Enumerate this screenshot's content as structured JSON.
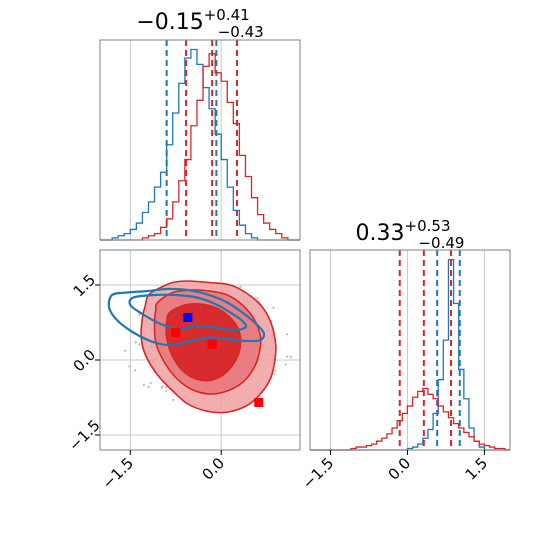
{
  "colors": {
    "blue": "#1f77b4",
    "red": "#d62728",
    "blue_marker": "#0000ff",
    "red_marker": "#ff0000",
    "grid": "#c8c8c8",
    "frame": "#808080",
    "scatter": "#c0c0c0",
    "fill_inner": "#d62728",
    "fill_outer": "#f0a0a0"
  },
  "chart_data": [
    {
      "type": "histogram",
      "panel": "top-left",
      "title": {
        "value": "−0.15",
        "plus": "+0.41",
        "minus": "−0.43"
      },
      "xlim": [
        -2.0,
        1.3
      ],
      "grid": true,
      "x_grid": [
        -1.5,
        0.0
      ],
      "quantile_lines": {
        "red": [
          -0.58,
          -0.15,
          0.26
        ],
        "blue": [
          -0.9,
          -0.08
        ]
      },
      "series": [
        {
          "color": "blue",
          "x": [
            -2.0,
            -1.9,
            -1.8,
            -1.7,
            -1.6,
            -1.5,
            -1.4,
            -1.3,
            -1.2,
            -1.1,
            -1.0,
            -0.9,
            -0.8,
            -0.7,
            -0.6,
            -0.5,
            -0.4,
            -0.3,
            -0.2,
            -0.1,
            0.0,
            0.1,
            0.2,
            0.3,
            0.4,
            0.5,
            0.6,
            0.7,
            0.8,
            0.9,
            1.0,
            1.1,
            1.2
          ],
          "values": [
            0,
            0,
            1,
            2,
            3,
            5,
            8,
            13,
            18,
            25,
            32,
            45,
            60,
            74,
            86,
            90,
            83,
            72,
            62,
            50,
            38,
            25,
            14,
            7,
            3,
            1,
            0,
            0,
            0,
            0,
            0,
            0,
            0
          ]
        },
        {
          "color": "red",
          "x": [
            -2.0,
            -1.9,
            -1.8,
            -1.7,
            -1.6,
            -1.5,
            -1.4,
            -1.3,
            -1.2,
            -1.1,
            -1.0,
            -0.9,
            -0.8,
            -0.7,
            -0.6,
            -0.5,
            -0.4,
            -0.3,
            -0.2,
            -0.1,
            0.0,
            0.1,
            0.2,
            0.3,
            0.4,
            0.5,
            0.6,
            0.7,
            0.8,
            0.9,
            1.0,
            1.1,
            1.2
          ],
          "values": [
            0,
            0,
            0,
            0,
            0,
            0,
            0,
            1,
            2,
            3,
            6,
            10,
            18,
            28,
            38,
            54,
            66,
            82,
            88,
            79,
            75,
            65,
            55,
            40,
            30,
            20,
            12,
            8,
            5,
            3,
            1,
            0,
            0
          ]
        }
      ]
    },
    {
      "type": "histogram",
      "panel": "bottom-right",
      "title": {
        "value": "0.33",
        "plus": "+0.53",
        "minus": "−0.49"
      },
      "xlim": [
        -1.9,
        2.0
      ],
      "xticks": [
        "−1.5",
        "0.0",
        "1.5"
      ],
      "x_grid": [
        -1.5,
        0.0,
        1.5
      ],
      "grid": true,
      "quantile_lines": {
        "red": [
          -0.15,
          0.32,
          0.85
        ],
        "blue": [
          0.58,
          1.02
        ]
      },
      "series": [
        {
          "color": "blue",
          "x": [
            -1.9,
            -1.8,
            -1.7,
            -1.6,
            -1.5,
            -1.4,
            -1.3,
            -1.2,
            -1.1,
            -1.0,
            -0.9,
            -0.8,
            -0.7,
            -0.6,
            -0.5,
            -0.4,
            -0.3,
            -0.2,
            -0.1,
            0.0,
            0.1,
            0.2,
            0.3,
            0.4,
            0.5,
            0.6,
            0.7,
            0.8,
            0.9,
            1.0,
            1.1,
            1.2,
            1.3,
            1.4,
            1.5,
            1.6,
            1.7,
            1.8,
            1.9
          ],
          "values": [
            0,
            0,
            0,
            0,
            0,
            0,
            0,
            0,
            0,
            0,
            0,
            0,
            0,
            0,
            0,
            0,
            0,
            0,
            0,
            1,
            2,
            4,
            8,
            14,
            25,
            48,
            75,
            130,
            100,
            55,
            35,
            15,
            6,
            2,
            0,
            0,
            0,
            0,
            0
          ]
        },
        {
          "color": "red",
          "x": [
            -1.9,
            -1.8,
            -1.7,
            -1.6,
            -1.5,
            -1.4,
            -1.3,
            -1.2,
            -1.1,
            -1.0,
            -0.9,
            -0.8,
            -0.7,
            -0.6,
            -0.5,
            -0.4,
            -0.3,
            -0.2,
            -0.1,
            0.0,
            0.1,
            0.2,
            0.3,
            0.4,
            0.5,
            0.6,
            0.7,
            0.8,
            0.9,
            1.0,
            1.1,
            1.2,
            1.3,
            1.4,
            1.5,
            1.6,
            1.7,
            1.8,
            1.9
          ],
          "values": [
            0,
            0,
            0,
            0,
            0,
            0,
            0,
            0,
            1,
            2,
            2,
            3,
            4,
            6,
            8,
            11,
            15,
            20,
            25,
            30,
            36,
            40,
            42,
            38,
            35,
            30,
            26,
            22,
            18,
            15,
            12,
            9,
            6,
            4,
            3,
            2,
            1,
            1,
            0
          ]
        }
      ]
    },
    {
      "type": "contour",
      "panel": "bottom-left",
      "xlim": [
        -2.0,
        1.3
      ],
      "ylim": [
        -1.8,
        2.2
      ],
      "xticks": [
        "−1.5",
        "0.0"
      ],
      "yticks": [
        "1.5",
        "0.0",
        "−1.5"
      ],
      "x_grid": [
        -1.5,
        0.0
      ],
      "y_grid": [
        1.5,
        0.0,
        -1.5
      ],
      "grid": true,
      "red_contours": [
        {
          "level": "outer",
          "points": [
            [
              -1.2,
              1.3
            ],
            [
              -1.0,
              1.45
            ],
            [
              -0.8,
              1.55
            ],
            [
              -0.55,
              1.58
            ],
            [
              -0.2,
              1.55
            ],
            [
              0.15,
              1.5
            ],
            [
              0.4,
              1.35
            ],
            [
              0.65,
              1.1
            ],
            [
              0.82,
              0.75
            ],
            [
              0.9,
              0.3
            ],
            [
              0.88,
              -0.05
            ],
            [
              0.82,
              -0.35
            ],
            [
              0.7,
              -0.6
            ],
            [
              0.5,
              -0.85
            ],
            [
              0.3,
              -0.98
            ],
            [
              0.05,
              -1.05
            ],
            [
              -0.25,
              -1.02
            ],
            [
              -0.55,
              -0.88
            ],
            [
              -0.8,
              -0.62
            ],
            [
              -1.05,
              -0.3
            ],
            [
              -1.25,
              0.1
            ],
            [
              -1.32,
              0.45
            ],
            [
              -1.3,
              0.85
            ],
            [
              -1.25,
              1.1
            ]
          ]
        },
        {
          "level": "middle",
          "points": [
            [
              -1.05,
              1.15
            ],
            [
              -0.8,
              1.35
            ],
            [
              -0.5,
              1.4
            ],
            [
              -0.2,
              1.38
            ],
            [
              0.1,
              1.3
            ],
            [
              0.35,
              1.1
            ],
            [
              0.55,
              0.8
            ],
            [
              0.65,
              0.45
            ],
            [
              0.62,
              0.1
            ],
            [
              0.52,
              -0.2
            ],
            [
              0.35,
              -0.45
            ],
            [
              0.1,
              -0.62
            ],
            [
              -0.2,
              -0.68
            ],
            [
              -0.5,
              -0.58
            ],
            [
              -0.75,
              -0.35
            ],
            [
              -0.95,
              -0.02
            ],
            [
              -1.08,
              0.35
            ],
            [
              -1.1,
              0.75
            ],
            [
              -1.08,
              1.0
            ]
          ]
        },
        {
          "level": "inner",
          "points": [
            [
              -0.85,
              0.95
            ],
            [
              -0.6,
              1.1
            ],
            [
              -0.35,
              1.12
            ],
            [
              -0.1,
              1.05
            ],
            [
              0.12,
              0.88
            ],
            [
              0.28,
              0.62
            ],
            [
              0.32,
              0.32
            ],
            [
              0.25,
              0.02
            ],
            [
              0.08,
              -0.25
            ],
            [
              -0.15,
              -0.4
            ],
            [
              -0.42,
              -0.38
            ],
            [
              -0.65,
              -0.2
            ],
            [
              -0.82,
              0.12
            ],
            [
              -0.9,
              0.45
            ],
            [
              -0.9,
              0.75
            ]
          ]
        }
      ],
      "blue_contours": [
        {
          "level": "outer",
          "points": [
            [
              -1.8,
              1.3
            ],
            [
              -1.55,
              1.35
            ],
            [
              -1.2,
              1.38
            ],
            [
              -0.9,
              1.42
            ],
            [
              -0.55,
              1.4
            ],
            [
              -0.2,
              1.3
            ],
            [
              0.1,
              1.15
            ],
            [
              0.35,
              0.95
            ],
            [
              0.55,
              0.75
            ],
            [
              0.7,
              0.55
            ],
            [
              0.65,
              0.4
            ],
            [
              0.4,
              0.38
            ],
            [
              0.1,
              0.42
            ],
            [
              -0.2,
              0.45
            ],
            [
              -0.5,
              0.38
            ],
            [
              -0.8,
              0.3
            ],
            [
              -1.1,
              0.35
            ],
            [
              -1.45,
              0.55
            ],
            [
              -1.72,
              0.8
            ],
            [
              -1.85,
              1.05
            ]
          ]
        },
        {
          "level": "inner",
          "points": [
            [
              -1.45,
              1.25
            ],
            [
              -1.1,
              1.3
            ],
            [
              -0.75,
              1.3
            ],
            [
              -0.4,
              1.25
            ],
            [
              -0.1,
              1.12
            ],
            [
              0.15,
              0.95
            ],
            [
              0.35,
              0.78
            ],
            [
              0.4,
              0.65
            ],
            [
              0.2,
              0.6
            ],
            [
              -0.1,
              0.65
            ],
            [
              -0.4,
              0.68
            ],
            [
              -0.7,
              0.62
            ],
            [
              -1.0,
              0.72
            ],
            [
              -1.3,
              0.92
            ],
            [
              -1.5,
              1.1
            ]
          ]
        }
      ],
      "markers": [
        {
          "color": "blue_marker",
          "x": -0.55,
          "y": 0.85
        },
        {
          "color": "red_marker",
          "x": -0.75,
          "y": 0.55
        },
        {
          "color": "red_marker",
          "x": -0.15,
          "y": 0.32
        },
        {
          "color": "red_marker",
          "x": 0.62,
          "y": -0.85
        }
      ]
    }
  ]
}
